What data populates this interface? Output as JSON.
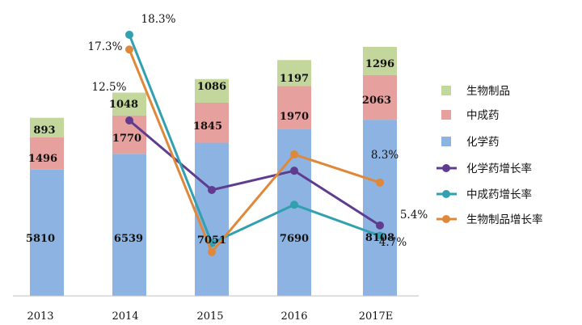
{
  "chart_data": {
    "type": "bar",
    "stacked": true,
    "categories": [
      "2013",
      "2014",
      "2015",
      "2016",
      "2017E"
    ],
    "series": [
      {
        "name": "化学药",
        "kind": "bar",
        "color": "#8db3e2",
        "values": [
          5810,
          6539,
          7051,
          7690,
          8108
        ]
      },
      {
        "name": "中成药",
        "kind": "bar",
        "color": "#e6a09e",
        "values": [
          1496,
          1770,
          1845,
          1970,
          2063
        ]
      },
      {
        "name": "生物制品",
        "kind": "bar",
        "color": "#c3d69b",
        "values": [
          893,
          1048,
          1086,
          1197,
          1296
        ]
      },
      {
        "name": "化学药增长率",
        "kind": "line",
        "color": "#5f3c8f",
        "values": [
          null,
          12.5,
          7.8,
          9.1,
          5.4
        ]
      },
      {
        "name": "中成药增长率",
        "kind": "line",
        "color": "#31a0b0",
        "values": [
          null,
          18.3,
          4.2,
          6.8,
          4.7
        ]
      },
      {
        "name": "生物制品增长率",
        "kind": "line",
        "color": "#e0883a",
        "values": [
          null,
          17.3,
          3.6,
          10.2,
          8.3
        ]
      }
    ],
    "labels": {
      "chem": [
        "5810",
        "6539",
        "7051",
        "7690",
        "8108"
      ],
      "tcm": [
        "1496",
        "1770",
        "1845",
        "1970",
        "2063"
      ],
      "bio": [
        "893",
        "1048",
        "1086",
        "1197",
        "1296"
      ]
    },
    "annotations": [
      "12.5%",
      "18.3%",
      "17.3%",
      "8.3%",
      "5.4%",
      "4.7%"
    ],
    "ylim": [
      0,
      12000
    ],
    "y2lim": [
      2,
      19.5
    ],
    "legend_position": "right",
    "grid": false
  }
}
